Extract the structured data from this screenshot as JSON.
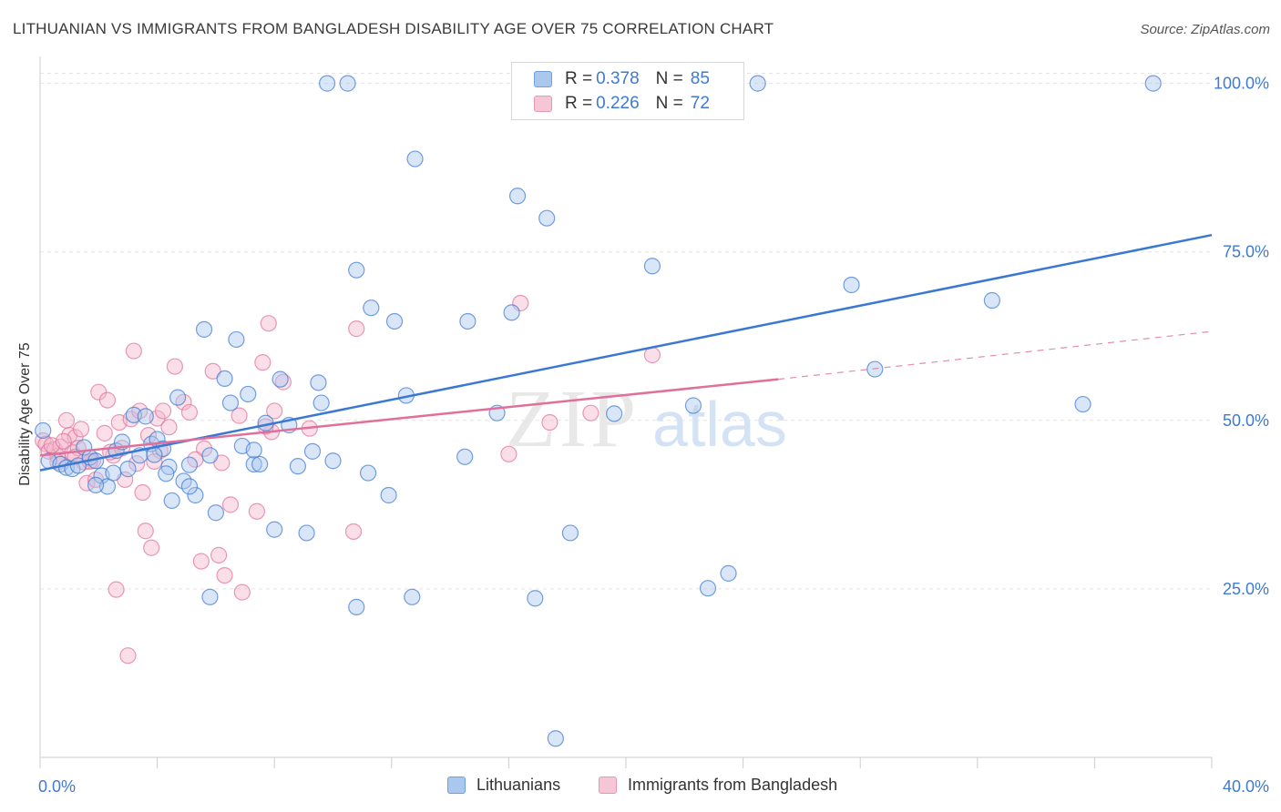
{
  "title": "LITHUANIAN VS IMMIGRANTS FROM BANGLADESH DISABILITY AGE OVER 75 CORRELATION CHART",
  "source": "Source: ZipAtlas.com",
  "watermark": {
    "zip": "ZIP",
    "atlas": "atlas"
  },
  "colors": {
    "blue": "#3a78d4",
    "blue_fill": "#aac8ee",
    "pink": "#e0709a",
    "pink_fill": "#f5b8cc",
    "grid": "#e4e4e4",
    "tick_label": "#3f7ad0"
  },
  "legend_top": {
    "blue": {
      "r_label": "R =",
      "r_value": "0.378",
      "n_label": "N =",
      "n_value": "85"
    },
    "pink": {
      "r_label": "R =",
      "r_value": "0.226",
      "n_label": "N =",
      "n_value": "72"
    }
  },
  "bottom_legend": {
    "blue": "Lithuanians",
    "pink": "Immigrants from Bangladesh"
  },
  "chart_data": {
    "type": "scatter",
    "title": "LITHUANIAN VS IMMIGRANTS FROM BANGLADESH DISABILITY AGE OVER 75 CORRELATION CHART",
    "xlabel": "",
    "ylabel": "Disability Age Over 75",
    "xlim": [
      0,
      40
    ],
    "ylim": [
      0,
      104
    ],
    "x_tick_labels": [
      {
        "value": 0,
        "label": "0.0%"
      },
      {
        "value": 40,
        "label": "40.0%"
      }
    ],
    "y_tick_labels": [
      {
        "value": 25,
        "label": "25.0%"
      },
      {
        "value": 50,
        "label": "50.0%"
      },
      {
        "value": 75,
        "label": "75.0%"
      },
      {
        "value": 100,
        "label": "100.0%"
      }
    ],
    "grid": true,
    "legend": "top-center",
    "series": [
      {
        "name": "Lithuanians",
        "color": "#3a78d4",
        "r": 0.378,
        "n": 85,
        "trend": {
          "x": [
            0,
            40
          ],
          "y": [
            42.6,
            77.5
          ],
          "dashed_from": null
        },
        "points": [
          [
            0.3,
            44
          ],
          [
            0.7,
            43.5
          ],
          [
            0.9,
            43
          ],
          [
            1.1,
            42.8
          ],
          [
            1.3,
            43.3
          ],
          [
            1.5,
            46
          ],
          [
            1.7,
            44.5
          ],
          [
            1.9,
            44
          ],
          [
            2.1,
            41.8
          ],
          [
            2.3,
            40.2
          ],
          [
            2.5,
            42.2
          ],
          [
            2.6,
            45.5
          ],
          [
            2.8,
            46.8
          ],
          [
            3.0,
            42.8
          ],
          [
            3.2,
            50.8
          ],
          [
            3.4,
            44.8
          ],
          [
            3.6,
            50.6
          ],
          [
            3.8,
            46.5
          ],
          [
            4.0,
            47.2
          ],
          [
            4.2,
            45.8
          ],
          [
            4.4,
            43.1
          ],
          [
            4.5,
            38.1
          ],
          [
            4.7,
            53.4
          ],
          [
            4.9,
            41
          ],
          [
            5.1,
            43.4
          ],
          [
            5.3,
            38.9
          ],
          [
            5.6,
            63.5
          ],
          [
            5.8,
            44.8
          ],
          [
            6.0,
            36.3
          ],
          [
            6.3,
            56.2
          ],
          [
            6.5,
            52.6
          ],
          [
            6.7,
            62
          ],
          [
            6.9,
            46.2
          ],
          [
            7.1,
            53.9
          ],
          [
            7.3,
            43.5
          ],
          [
            7.5,
            43.5
          ],
          [
            7.7,
            49.6
          ],
          [
            8.0,
            33.8
          ],
          [
            8.2,
            56.1
          ],
          [
            8.5,
            49.3
          ],
          [
            8.8,
            43.2
          ],
          [
            9.1,
            33.3
          ],
          [
            9.3,
            45.4
          ],
          [
            9.5,
            55.6
          ],
          [
            9.6,
            52.6
          ],
          [
            10.0,
            44
          ],
          [
            10.8,
            72.3
          ],
          [
            11.2,
            42.2
          ],
          [
            11.3,
            66.7
          ],
          [
            11.9,
            38.9
          ],
          [
            12.1,
            64.7
          ],
          [
            12.5,
            53.7
          ],
          [
            12.7,
            23.8
          ],
          [
            12.8,
            88.8
          ],
          [
            14.5,
            44.6
          ],
          [
            14.6,
            64.7
          ],
          [
            15.6,
            51.1
          ],
          [
            16.1,
            66
          ],
          [
            16.3,
            83.3
          ],
          [
            16.9,
            23.6
          ],
          [
            17.3,
            80
          ],
          [
            17.6,
            2.8
          ],
          [
            18.1,
            33.3
          ],
          [
            19.6,
            51
          ],
          [
            20.9,
            72.9
          ],
          [
            22.3,
            52.2
          ],
          [
            22.8,
            25.1
          ],
          [
            23.5,
            27.3
          ],
          [
            27.7,
            70.1
          ],
          [
            28.5,
            57.6
          ],
          [
            32.5,
            67.8
          ],
          [
            35.6,
            52.4
          ],
          [
            9.8,
            100
          ],
          [
            10.5,
            100
          ],
          [
            21.5,
            100
          ],
          [
            24.5,
            100
          ],
          [
            38.0,
            100
          ],
          [
            5.8,
            23.8
          ],
          [
            10.8,
            22.3
          ],
          [
            0.1,
            48.5
          ],
          [
            1.9,
            40.4
          ],
          [
            3.9,
            44.9
          ],
          [
            5.1,
            40.2
          ],
          [
            7.3,
            45.6
          ],
          [
            4.3,
            42.1
          ]
        ]
      },
      {
        "name": "Immigrants from Bangladesh",
        "color": "#e0709a",
        "r": 0.226,
        "n": 72,
        "trend": {
          "x": [
            0,
            25.2,
            40
          ],
          "y": [
            44.8,
            56.1,
            63.2
          ],
          "dashed_from": 25.2
        },
        "points": [
          [
            0.1,
            47
          ],
          [
            0.2,
            46.5
          ],
          [
            0.3,
            45.4
          ],
          [
            0.5,
            45.7
          ],
          [
            0.6,
            44.7
          ],
          [
            0.7,
            46.1
          ],
          [
            0.9,
            50
          ],
          [
            1.0,
            47.8
          ],
          [
            1.1,
            45.2
          ],
          [
            1.2,
            47.5
          ],
          [
            1.3,
            45.9
          ],
          [
            1.4,
            48.7
          ],
          [
            1.5,
            43.8
          ],
          [
            1.6,
            40.7
          ],
          [
            1.8,
            44
          ],
          [
            1.9,
            41.2
          ],
          [
            2.0,
            54.2
          ],
          [
            2.2,
            48.1
          ],
          [
            2.3,
            53
          ],
          [
            2.5,
            44.8
          ],
          [
            2.6,
            24.9
          ],
          [
            2.7,
            49.7
          ],
          [
            2.9,
            41.2
          ],
          [
            3.0,
            15.1
          ],
          [
            3.1,
            50.2
          ],
          [
            3.2,
            60.3
          ],
          [
            3.3,
            43.6
          ],
          [
            3.4,
            51.4
          ],
          [
            3.5,
            39.3
          ],
          [
            3.6,
            33.6
          ],
          [
            3.8,
            31.1
          ],
          [
            4.0,
            50.3
          ],
          [
            4.2,
            51.4
          ],
          [
            4.4,
            49
          ],
          [
            4.6,
            58
          ],
          [
            4.9,
            52.7
          ],
          [
            5.1,
            51.2
          ],
          [
            5.5,
            29.1
          ],
          [
            5.6,
            45.8
          ],
          [
            5.9,
            57.3
          ],
          [
            6.1,
            30
          ],
          [
            6.3,
            27
          ],
          [
            6.5,
            37.5
          ],
          [
            6.8,
            50.7
          ],
          [
            6.9,
            24.5
          ],
          [
            7.4,
            36.5
          ],
          [
            7.6,
            58.6
          ],
          [
            7.8,
            64.4
          ],
          [
            7.9,
            48.3
          ],
          [
            8.0,
            51.4
          ],
          [
            8.3,
            55.7
          ],
          [
            9.2,
            48.8
          ],
          [
            10.7,
            33.5
          ],
          [
            10.8,
            63.6
          ],
          [
            16.0,
            45
          ],
          [
            16.4,
            67.4
          ],
          [
            17.4,
            49.7
          ],
          [
            18.8,
            51.1
          ],
          [
            20.9,
            59.7
          ],
          [
            2.4,
            45.3
          ],
          [
            1.7,
            43.9
          ],
          [
            0.4,
            46.3
          ],
          [
            0.8,
            46.9
          ],
          [
            1.2,
            44.6
          ],
          [
            4.1,
            45.5
          ],
          [
            6.2,
            43.7
          ],
          [
            3.7,
            47.8
          ],
          [
            2.8,
            45.9
          ],
          [
            3.9,
            43.9
          ],
          [
            5.3,
            44.2
          ],
          [
            7.7,
            49.1
          ],
          [
            0.6,
            43.8
          ]
        ]
      }
    ]
  }
}
